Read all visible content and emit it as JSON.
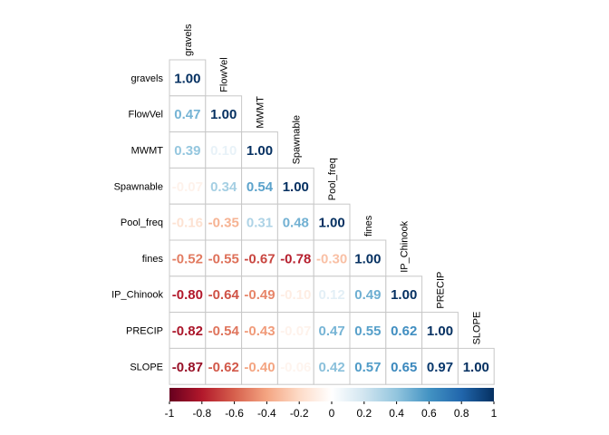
{
  "chart_data": {
    "type": "heatmap",
    "variables": [
      "gravels",
      "FlowVel",
      "MWMT",
      "Spawnable",
      "Pool_freq",
      "fines",
      "IP_Chinook",
      "PRECIP",
      "SLOPE"
    ],
    "matrix": [
      [
        1.0
      ],
      [
        0.47,
        1.0
      ],
      [
        0.39,
        0.1,
        1.0
      ],
      [
        -0.07,
        0.34,
        0.54,
        1.0
      ],
      [
        -0.16,
        -0.35,
        0.31,
        0.48,
        1.0
      ],
      [
        -0.52,
        -0.55,
        -0.67,
        -0.78,
        -0.3,
        1.0
      ],
      [
        -0.8,
        -0.64,
        -0.49,
        -0.1,
        0.12,
        0.49,
        1.0
      ],
      [
        -0.82,
        -0.54,
        -0.43,
        -0.07,
        0.47,
        0.55,
        0.62,
        1.0
      ],
      [
        -0.87,
        -0.62,
        -0.4,
        -0.06,
        0.42,
        0.57,
        0.65,
        0.97,
        1.0
      ]
    ],
    "value_labels": [
      [
        "1.00"
      ],
      [
        "0.47",
        "1.00"
      ],
      [
        "0.39",
        "0.10",
        "1.00"
      ],
      [
        "-0.07",
        "0.34",
        "0.54",
        "1.00"
      ],
      [
        "-0.16",
        "-0.35",
        "0.31",
        "0.48",
        "1.00"
      ],
      [
        "-0.52",
        "-0.55",
        "-0.67",
        "-0.78",
        "-0.30",
        "1.00"
      ],
      [
        "-0.80",
        "-0.64",
        "-0.49",
        "-0.10",
        "0.12",
        "0.49",
        "1.00"
      ],
      [
        "-0.82",
        "-0.54",
        "-0.43",
        "-0.07",
        "0.47",
        "0.55",
        "0.62",
        "1.00"
      ],
      [
        "-0.87",
        "-0.62",
        "-0.40",
        "-0.06",
        "0.42",
        "0.57",
        "0.65",
        "0.97",
        "1.00"
      ]
    ],
    "layout": "lower-triangle",
    "colorbar": {
      "range": [
        -1,
        1
      ],
      "ticks": [
        "-1",
        "-0.8",
        "-0.6",
        "-0.4",
        "-0.2",
        "0",
        "0.2",
        "0.4",
        "0.6",
        "0.8",
        "1"
      ],
      "orientation": "horizontal",
      "placement": "bottom"
    },
    "colorscale": [
      "#67001F",
      "#B2182B",
      "#D6604D",
      "#F4A582",
      "#FDDBC7",
      "#FFFFFF",
      "#D1E5F0",
      "#92C5DE",
      "#4393C3",
      "#2166AC",
      "#053061"
    ]
  }
}
